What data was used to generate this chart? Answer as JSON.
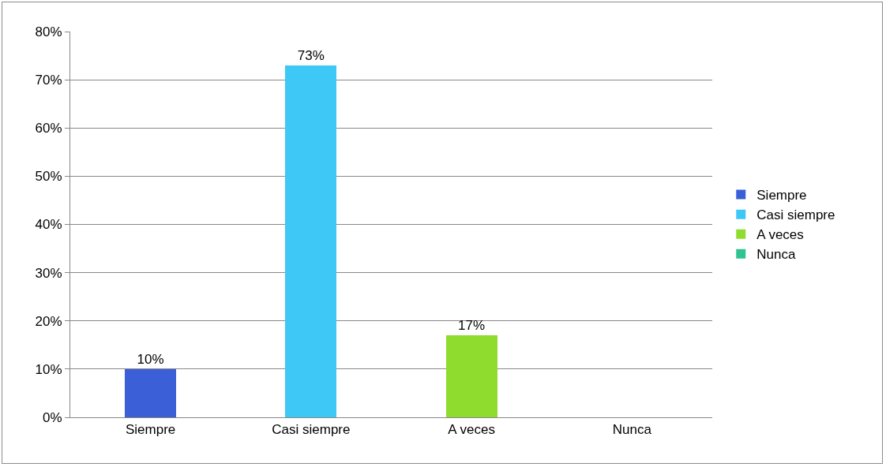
{
  "chart_data": {
    "type": "bar",
    "categories": [
      "Siempre",
      "Casi siempre",
      "A veces",
      "Nunca"
    ],
    "series": [
      {
        "name": "Siempre",
        "color": "#3a5fd6",
        "values": [
          10,
          null,
          null,
          null
        ],
        "value_labels": [
          "10%",
          null,
          null,
          null
        ]
      },
      {
        "name": "Casi siempre",
        "color": "#3ec8f5",
        "values": [
          null,
          73,
          null,
          null
        ],
        "value_labels": [
          null,
          "73%",
          null,
          null
        ]
      },
      {
        "name": "A veces",
        "color": "#8fdc2e",
        "values": [
          null,
          null,
          17,
          null
        ],
        "value_labels": [
          null,
          null,
          "17%",
          null
        ]
      },
      {
        "name": "Nunca",
        "color": "#2fc390",
        "values": [
          null,
          null,
          null,
          0
        ],
        "value_labels": [
          null,
          null,
          null,
          null
        ]
      }
    ],
    "ylim": [
      0,
      80
    ],
    "yticks": [
      {
        "value": 0,
        "label": "0%"
      },
      {
        "value": 10,
        "label": "10%"
      },
      {
        "value": 20,
        "label": "20%"
      },
      {
        "value": 30,
        "label": "30%"
      },
      {
        "value": 40,
        "label": "40%"
      },
      {
        "value": 50,
        "label": "50%"
      },
      {
        "value": 60,
        "label": "60%"
      },
      {
        "value": 70,
        "label": "70%"
      },
      {
        "value": 80,
        "label": "80%"
      }
    ],
    "grid": "y",
    "legend": "right"
  }
}
